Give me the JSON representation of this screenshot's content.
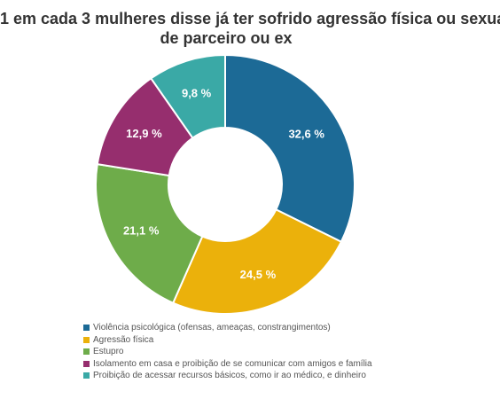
{
  "title_line1": "1 em cada 3 mulheres disse já ter sofrido agressão física ou sexual",
  "title_line2": "de parceiro ou ex",
  "chart_data": {
    "type": "pie",
    "donut": true,
    "title": "1 em cada 3 mulheres disse já ter sofrido agressão física ou sexual de parceiro ou ex",
    "slices": [
      {
        "label": "Violência psicológica (ofensas, ameaças, constrangimentos)",
        "value": 32.6,
        "display": "32,6 %",
        "color": "#1c6a96"
      },
      {
        "label": "Agressão física",
        "value": 24.5,
        "display": "24,5 %",
        "color": "#ebb10b"
      },
      {
        "label": "Estupro",
        "value": 21.1,
        "display": "21,1 %",
        "color": "#6eac4a"
      },
      {
        "label": "Isolamento em casa e proibição de se comunicar com amigos e família",
        "value": 12.9,
        "display": "12,9 %",
        "color": "#962e6e"
      },
      {
        "label": "Proibição de acessar recursos básicos, como ir ao médico, e dinheiro",
        "value": 9.8,
        "display": "9,8 %",
        "color": "#3aa9a6"
      }
    ],
    "legend_position": "bottom-left"
  }
}
